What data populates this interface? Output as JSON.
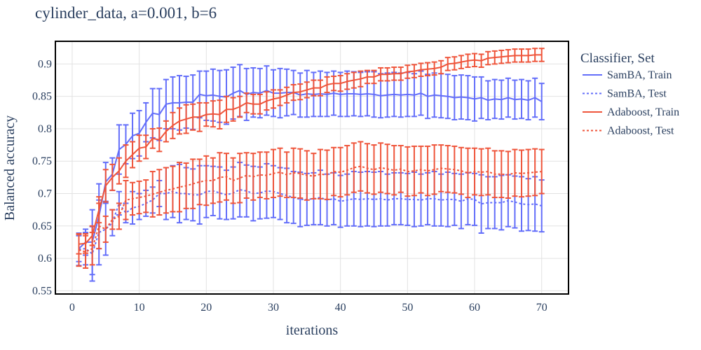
{
  "chart_data": {
    "type": "line",
    "title": "cylinder_data, a=0.001, b=6",
    "xlabel": "iterations",
    "ylabel": "Balanced accuracy",
    "xlim": [
      -2.5,
      74
    ],
    "ylim": [
      0.545,
      0.935
    ],
    "x_ticks": [
      0,
      10,
      20,
      30,
      40,
      50,
      60,
      70
    ],
    "y_ticks": [
      0.55,
      0.6,
      0.65,
      0.7,
      0.75,
      0.8,
      0.85,
      0.9
    ],
    "grid": true,
    "error_bars": true,
    "legend": {
      "title": "Classifier, Set",
      "position": "right"
    },
    "x": [
      1,
      2,
      3,
      4,
      5,
      6,
      7,
      8,
      9,
      10,
      11,
      12,
      13,
      14,
      15,
      16,
      17,
      18,
      19,
      20,
      21,
      22,
      23,
      24,
      25,
      26,
      27,
      28,
      29,
      30,
      31,
      32,
      33,
      34,
      35,
      36,
      37,
      38,
      39,
      40,
      41,
      42,
      43,
      44,
      45,
      46,
      47,
      48,
      49,
      50,
      51,
      52,
      53,
      54,
      55,
      56,
      57,
      58,
      59,
      60,
      61,
      62,
      63,
      64,
      65,
      66,
      67,
      68,
      69,
      70
    ],
    "series": [
      {
        "name": "SamBA, Train",
        "color": "#636efa",
        "dash": "solid",
        "values": [
          0.615,
          0.625,
          0.625,
          0.665,
          0.718,
          0.73,
          0.768,
          0.776,
          0.789,
          0.793,
          0.81,
          0.824,
          0.822,
          0.838,
          0.84,
          0.84,
          0.841,
          0.841,
          0.853,
          0.851,
          0.852,
          0.85,
          0.849,
          0.855,
          0.859,
          0.853,
          0.856,
          0.855,
          0.859,
          0.855,
          0.855,
          0.856,
          0.856,
          0.852,
          0.854,
          0.853,
          0.854,
          0.853,
          0.855,
          0.853,
          0.854,
          0.854,
          0.853,
          0.854,
          0.853,
          0.851,
          0.852,
          0.853,
          0.852,
          0.853,
          0.852,
          0.855,
          0.85,
          0.852,
          0.851,
          0.85,
          0.848,
          0.849,
          0.848,
          0.846,
          0.848,
          0.844,
          0.846,
          0.845,
          0.848,
          0.845,
          0.846,
          0.844,
          0.848,
          0.842
        ],
        "errors": [
          0.02,
          0.02,
          0.05,
          0.05,
          0.03,
          0.025,
          0.038,
          0.03,
          0.035,
          0.035,
          0.03,
          0.038,
          0.04,
          0.038,
          0.04,
          0.042,
          0.04,
          0.042,
          0.036,
          0.038,
          0.04,
          0.04,
          0.042,
          0.04,
          0.04,
          0.04,
          0.038,
          0.038,
          0.038,
          0.036,
          0.038,
          0.036,
          0.034,
          0.034,
          0.036,
          0.034,
          0.035,
          0.034,
          0.034,
          0.034,
          0.035,
          0.034,
          0.034,
          0.034,
          0.035,
          0.034,
          0.034,
          0.034,
          0.034,
          0.034,
          0.033,
          0.034,
          0.034,
          0.034,
          0.034,
          0.034,
          0.034,
          0.034,
          0.034,
          0.034,
          0.032,
          0.03,
          0.03,
          0.03,
          0.03,
          0.03,
          0.03,
          0.03,
          0.03,
          0.028
        ]
      },
      {
        "name": "SamBA, Test",
        "color": "#636efa",
        "dash": "dot",
        "values": [
          0.614,
          0.615,
          0.607,
          0.64,
          0.645,
          0.655,
          0.685,
          0.67,
          0.678,
          0.68,
          0.685,
          0.69,
          0.7,
          0.7,
          0.703,
          0.7,
          0.7,
          0.698,
          0.698,
          0.703,
          0.704,
          0.701,
          0.698,
          0.701,
          0.706,
          0.704,
          0.7,
          0.701,
          0.704,
          0.703,
          0.7,
          0.697,
          0.694,
          0.691,
          0.691,
          0.692,
          0.694,
          0.69,
          0.692,
          0.688,
          0.69,
          0.692,
          0.691,
          0.692,
          0.691,
          0.692,
          0.69,
          0.692,
          0.692,
          0.691,
          0.691,
          0.69,
          0.692,
          0.692,
          0.69,
          0.691,
          0.691,
          0.688,
          0.692,
          0.691,
          0.684,
          0.686,
          0.686,
          0.686,
          0.689,
          0.687,
          0.684,
          0.683,
          0.684,
          0.681
        ],
        "errors": [
          0.025,
          0.025,
          0.042,
          0.05,
          0.04,
          0.02,
          0.018,
          0.015,
          0.025,
          0.02,
          0.02,
          0.02,
          0.02,
          0.04,
          0.04,
          0.045,
          0.04,
          0.04,
          0.045,
          0.04,
          0.038,
          0.04,
          0.038,
          0.04,
          0.042,
          0.04,
          0.042,
          0.04,
          0.042,
          0.04,
          0.04,
          0.042,
          0.04,
          0.042,
          0.04,
          0.04,
          0.042,
          0.04,
          0.04,
          0.04,
          0.04,
          0.042,
          0.042,
          0.042,
          0.042,
          0.042,
          0.04,
          0.04,
          0.04,
          0.04,
          0.042,
          0.04,
          0.04,
          0.042,
          0.04,
          0.042,
          0.04,
          0.042,
          0.04,
          0.04,
          0.045,
          0.04,
          0.04,
          0.042,
          0.04,
          0.04,
          0.042,
          0.04,
          0.042,
          0.04
        ]
      },
      {
        "name": "Adaboost, Train",
        "color": "#ef553b",
        "dash": "solid",
        "values": [
          0.622,
          0.623,
          0.635,
          0.675,
          0.712,
          0.725,
          0.735,
          0.75,
          0.76,
          0.77,
          0.772,
          0.785,
          0.783,
          0.796,
          0.805,
          0.812,
          0.815,
          0.818,
          0.818,
          0.822,
          0.823,
          0.822,
          0.83,
          0.83,
          0.834,
          0.84,
          0.838,
          0.838,
          0.843,
          0.846,
          0.848,
          0.852,
          0.856,
          0.857,
          0.86,
          0.863,
          0.863,
          0.868,
          0.87,
          0.87,
          0.873,
          0.875,
          0.877,
          0.88,
          0.88,
          0.884,
          0.884,
          0.885,
          0.885,
          0.888,
          0.889,
          0.891,
          0.892,
          0.893,
          0.895,
          0.9,
          0.901,
          0.903,
          0.905,
          0.906,
          0.905,
          0.909,
          0.91,
          0.911,
          0.912,
          0.913,
          0.913,
          0.913,
          0.914,
          0.914
        ],
        "errors": [
          0.015,
          0.015,
          0.015,
          0.02,
          0.025,
          0.02,
          0.02,
          0.025,
          0.02,
          0.02,
          0.018,
          0.015,
          0.018,
          0.016,
          0.02,
          0.02,
          0.022,
          0.02,
          0.022,
          0.018,
          0.02,
          0.022,
          0.02,
          0.018,
          0.016,
          0.015,
          0.015,
          0.015,
          0.014,
          0.014,
          0.012,
          0.012,
          0.012,
          0.012,
          0.012,
          0.012,
          0.012,
          0.012,
          0.011,
          0.012,
          0.012,
          0.012,
          0.012,
          0.01,
          0.01,
          0.01,
          0.01,
          0.01,
          0.01,
          0.01,
          0.01,
          0.01,
          0.01,
          0.01,
          0.01,
          0.01,
          0.01,
          0.01,
          0.01,
          0.01,
          0.01,
          0.01,
          0.01,
          0.01,
          0.01,
          0.01,
          0.01,
          0.01,
          0.01,
          0.01
        ]
      },
      {
        "name": "Adaboost, Test",
        "color": "#ef553b",
        "dash": "dot",
        "values": [
          0.613,
          0.61,
          0.615,
          0.65,
          0.645,
          0.66,
          0.665,
          0.69,
          0.692,
          0.694,
          0.696,
          0.699,
          0.702,
          0.705,
          0.707,
          0.71,
          0.712,
          0.715,
          0.718,
          0.72,
          0.72,
          0.725,
          0.726,
          0.72,
          0.724,
          0.728,
          0.726,
          0.729,
          0.728,
          0.731,
          0.733,
          0.729,
          0.732,
          0.731,
          0.728,
          0.727,
          0.73,
          0.729,
          0.734,
          0.733,
          0.736,
          0.74,
          0.742,
          0.739,
          0.737,
          0.74,
          0.738,
          0.736,
          0.738,
          0.734,
          0.735,
          0.737,
          0.735,
          0.737,
          0.739,
          0.738,
          0.737,
          0.735,
          0.732,
          0.734,
          0.733,
          0.734,
          0.73,
          0.73,
          0.729,
          0.732,
          0.731,
          0.732,
          0.733,
          0.734
        ],
        "errors": [
          0.025,
          0.025,
          0.025,
          0.035,
          0.02,
          0.015,
          0.02,
          0.03,
          0.025,
          0.025,
          0.025,
          0.035,
          0.035,
          0.035,
          0.035,
          0.038,
          0.035,
          0.038,
          0.035,
          0.038,
          0.035,
          0.038,
          0.036,
          0.035,
          0.038,
          0.035,
          0.036,
          0.035,
          0.036,
          0.037,
          0.037,
          0.035,
          0.038,
          0.038,
          0.038,
          0.035,
          0.038,
          0.038,
          0.037,
          0.038,
          0.038,
          0.038,
          0.038,
          0.038,
          0.038,
          0.038,
          0.038,
          0.038,
          0.036,
          0.038,
          0.038,
          0.036,
          0.038,
          0.038,
          0.036,
          0.036,
          0.036,
          0.036,
          0.038,
          0.036,
          0.036,
          0.036,
          0.036,
          0.036,
          0.036,
          0.036,
          0.036,
          0.036,
          0.036,
          0.034
        ]
      }
    ]
  }
}
